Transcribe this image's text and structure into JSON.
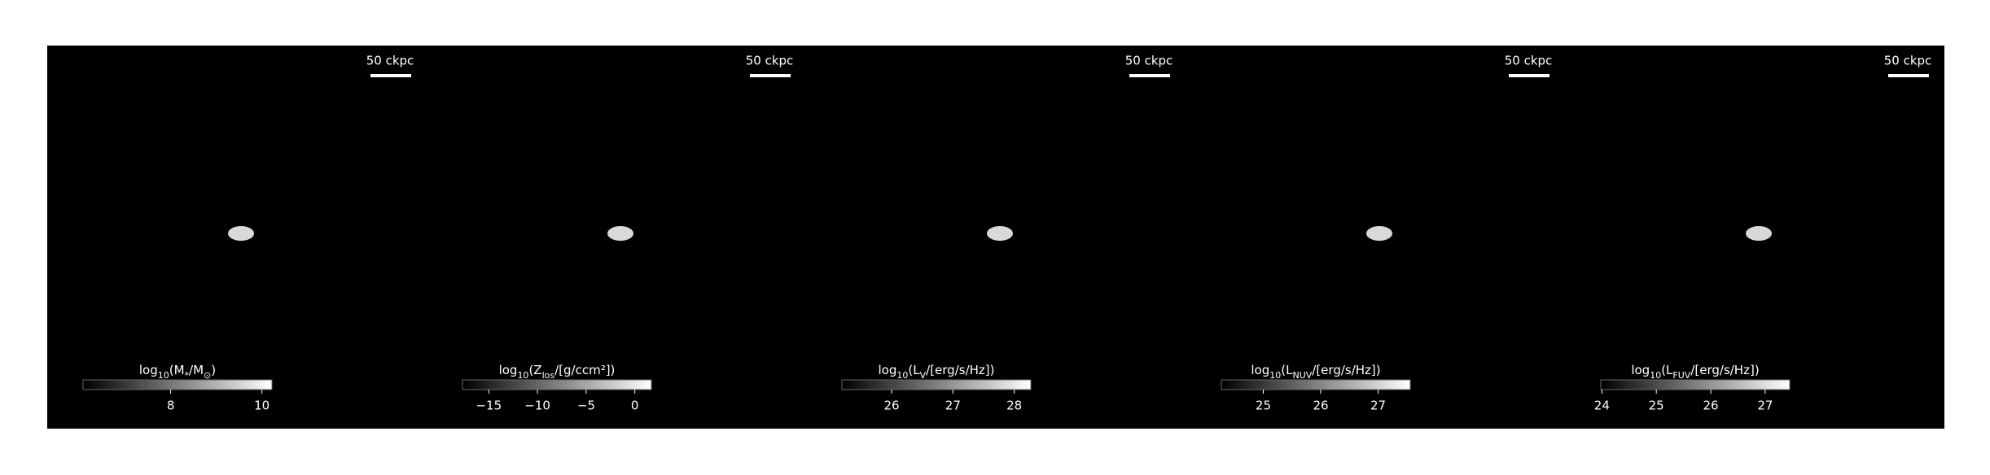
{
  "chart_data": [
    {
      "type": "image",
      "scale_bar": "50 ckpc",
      "colorbar_label": [
        "log",
        "10",
        "(M",
        "*",
        "/M",
        "⊙",
        ")"
      ],
      "clim": [
        6.08,
        10.22
      ],
      "colorbar_ticks": [
        8,
        10
      ]
    },
    {
      "type": "image",
      "scale_bar": "50 ckpc",
      "colorbar_label": [
        "log",
        "10",
        "(Z",
        "los",
        "/[g/ccm²])"
      ],
      "clim": [
        -17.7,
        1.7
      ],
      "colorbar_ticks": [
        {
          "value": -15,
          "label": "−15"
        },
        {
          "value": -10,
          "label": "−10"
        },
        {
          "value": -5,
          "label": "−5"
        },
        0
      ]
    },
    {
      "type": "image",
      "scale_bar": "50 ckpc",
      "colorbar_label": [
        "log",
        "10",
        "(L",
        "V",
        "/[erg/s/Hz])"
      ],
      "clim": [
        25.19,
        28.27
      ],
      "colorbar_ticks": [
        26,
        27,
        28
      ]
    },
    {
      "type": "image",
      "scale_bar": "50 ckpc",
      "colorbar_label": [
        "log",
        "10",
        "(L",
        "NUV",
        "/[erg/s/Hz])"
      ],
      "clim": [
        24.27,
        27.56
      ],
      "colorbar_ticks": [
        25,
        26,
        27
      ]
    },
    {
      "type": "image",
      "scale_bar": "50 ckpc",
      "colorbar_label": [
        "log",
        "10",
        "(L",
        "FUV",
        "/[erg/s/Hz])"
      ],
      "clim": [
        23.98,
        27.45
      ],
      "colorbar_ticks": [
        24,
        25,
        26,
        27
      ]
    }
  ]
}
